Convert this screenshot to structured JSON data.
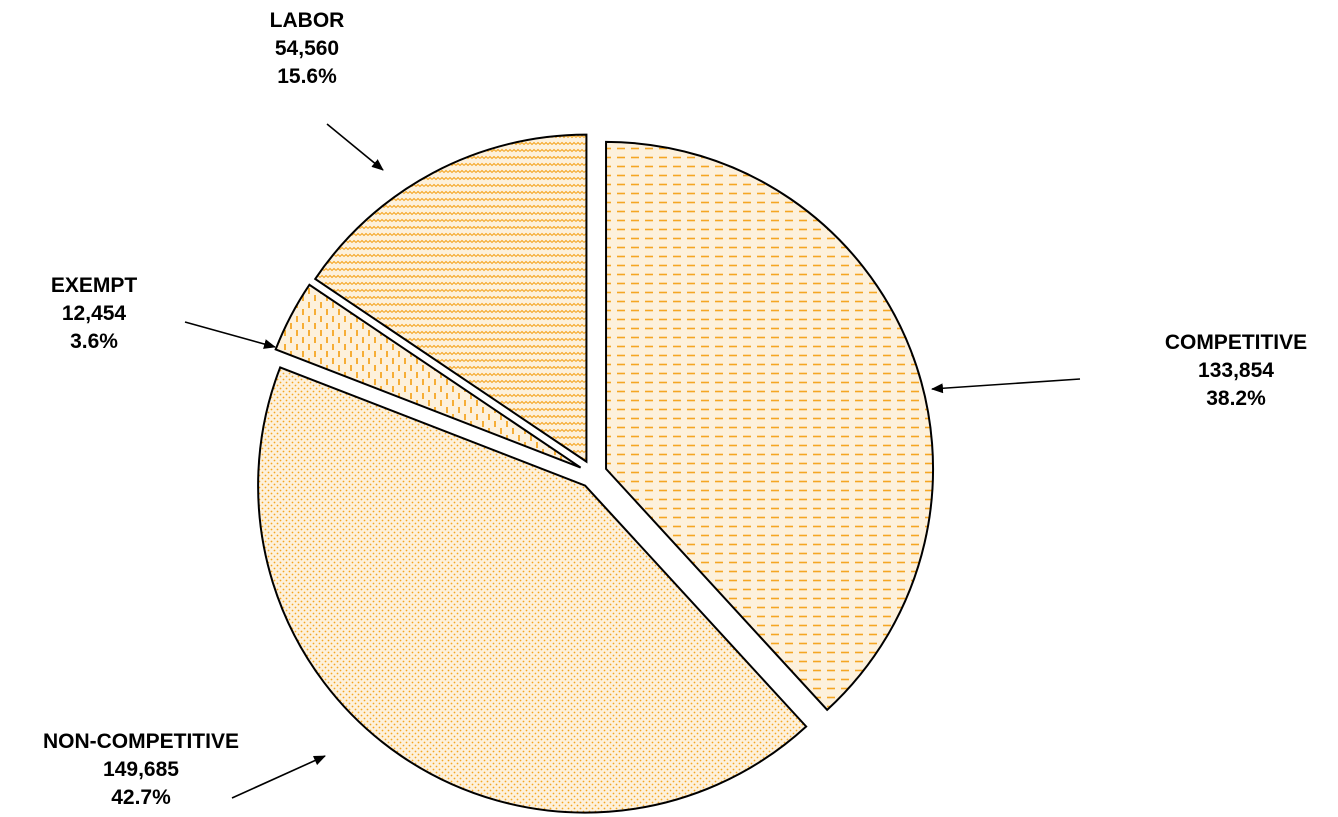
{
  "chart_data": {
    "type": "pie",
    "title": "",
    "slices": [
      {
        "name": "COMPETITIVE",
        "value": 133854,
        "value_label": "133,854",
        "percent_label": "38.2%",
        "pattern": "dashes-horizontal"
      },
      {
        "name": "NON-COMPETITIVE",
        "value": 149685,
        "value_label": "149,685",
        "percent_label": "42.7%",
        "pattern": "dots"
      },
      {
        "name": "EXEMPT",
        "value": 12454,
        "value_label": "12,454",
        "percent_label": "3.6%",
        "pattern": "dashes-vertical"
      },
      {
        "name": "LABOR",
        "value": 54560,
        "value_label": "54,560",
        "percent_label": "15.6%",
        "pattern": "zigzag"
      }
    ],
    "exploded": true,
    "legend": "none",
    "colors": {
      "fill_bg": "#fdf1dc",
      "pattern": "#f5a623",
      "outline": "#000000"
    }
  }
}
